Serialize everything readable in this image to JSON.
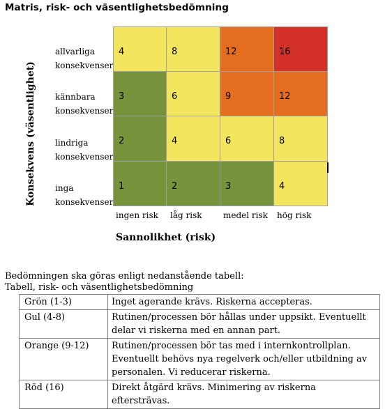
{
  "title": "Matris, risk- och väsentlighetsbedömning",
  "y_axis_title": "Konsekvens (väsentlighet)",
  "x_axis_title": "Sannolikhet (risk)",
  "row_labels": [
    {
      "line1": "allvarliga",
      "line2": "konsekvenser"
    },
    {
      "line1": "kännbara",
      "line2": "konsekvenser"
    },
    {
      "line1": "lindriga",
      "line2": "konsekvenser"
    },
    {
      "line1": "inga",
      "line2": "konsekvenser"
    }
  ],
  "column_labels": [
    "ingen risk",
    "låg risk",
    "medel risk",
    "hög risk"
  ],
  "matrix": [
    [
      {
        "value": "4",
        "color": "#f3e55d"
      },
      {
        "value": "8",
        "color": "#f3e55d"
      },
      {
        "value": "12",
        "color": "#e56d1f"
      },
      {
        "value": "16",
        "color": "#d4302a"
      }
    ],
    [
      {
        "value": "3",
        "color": "#77933c"
      },
      {
        "value": "6",
        "color": "#f3e55d"
      },
      {
        "value": "9",
        "color": "#e56d1f"
      },
      {
        "value": "12",
        "color": "#e56d1f"
      }
    ],
    [
      {
        "value": "2",
        "color": "#77933c"
      },
      {
        "value": "4",
        "color": "#f3e55d"
      },
      {
        "value": "6",
        "color": "#f3e55d"
      },
      {
        "value": "8",
        "color": "#f3e55d"
      }
    ],
    [
      {
        "value": "1",
        "color": "#77933c"
      },
      {
        "value": "2",
        "color": "#77933c"
      },
      {
        "value": "3",
        "color": "#77933c"
      },
      {
        "value": "4",
        "color": "#f3e55d"
      }
    ]
  ],
  "intro_line1": "Bedömningen ska göras enligt nedanstående tabell:",
  "intro_line2": "Tabell, risk- och väsentlighetsbedömning",
  "legend": [
    {
      "level": "Grön (1-3)",
      "text": "Inget agerande krävs. Riskerna accepteras."
    },
    {
      "level": "Gul (4-8)",
      "text": "Rutinen/processen bör hållas under uppsikt. Eventuellt delar vi riskerna med en annan part."
    },
    {
      "level": "Orange (9-12)",
      "text": "Rutinen/processen bör tas med i internkontrollplan. Eventuellt behövs nya regelverk och/eller utbildning av personalen. Vi reducerar riskerna."
    },
    {
      "level": "Röd (16)",
      "text": "Direkt åtgärd krävs. Minimering av riskerna eftersträvas."
    }
  ]
}
